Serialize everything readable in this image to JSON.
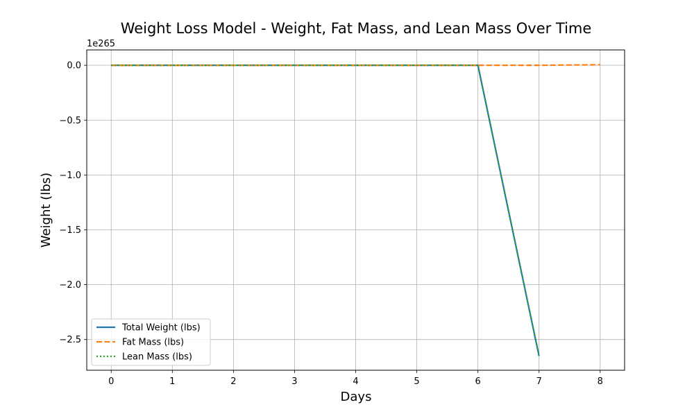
{
  "chart_data": {
    "type": "line",
    "title": "Weight Loss Model - Weight, Fat Mass, and Lean Mass Over Time",
    "xlabel": "Days",
    "ylabel": "Weight (lbs)",
    "y_offset_text": "1e265",
    "xlim": [
      -0.4,
      8.4
    ],
    "ylim": [
      -2.78,
      0.14
    ],
    "x_ticks": [
      0,
      1,
      2,
      3,
      4,
      5,
      6,
      7,
      8
    ],
    "x_tick_labels": [
      "0",
      "1",
      "2",
      "3",
      "4",
      "5",
      "6",
      "7",
      "8"
    ],
    "y_ticks": [
      0.0,
      -0.5,
      -1.0,
      -1.5,
      -2.0,
      -2.5
    ],
    "y_tick_labels": [
      "0.0",
      "−0.5",
      "−1.0",
      "−1.5",
      "−2.0",
      "−2.5"
    ],
    "grid": true,
    "legend_position": "lower-left",
    "series": [
      {
        "name": "Total Weight (lbs)",
        "color": "#1f77b4",
        "style": "solid",
        "x": [
          0,
          1,
          2,
          3,
          4,
          5,
          6,
          7
        ],
        "y": [
          0,
          0,
          0,
          0,
          0,
          0,
          0,
          -2.65
        ]
      },
      {
        "name": "Fat Mass (lbs)",
        "color": "#ff7f0e",
        "style": "dashed",
        "x": [
          0,
          1,
          2,
          3,
          4,
          5,
          6,
          7,
          8
        ],
        "y": [
          0,
          0,
          0,
          0,
          0,
          0,
          0,
          0.0,
          0.005
        ]
      },
      {
        "name": "Lean Mass (lbs)",
        "color": "#2ca02c",
        "style": "dotted",
        "x": [
          0,
          1,
          2,
          3,
          4,
          5,
          6,
          7
        ],
        "y": [
          0,
          0,
          0,
          0,
          0,
          0,
          0,
          -2.65
        ]
      }
    ]
  }
}
